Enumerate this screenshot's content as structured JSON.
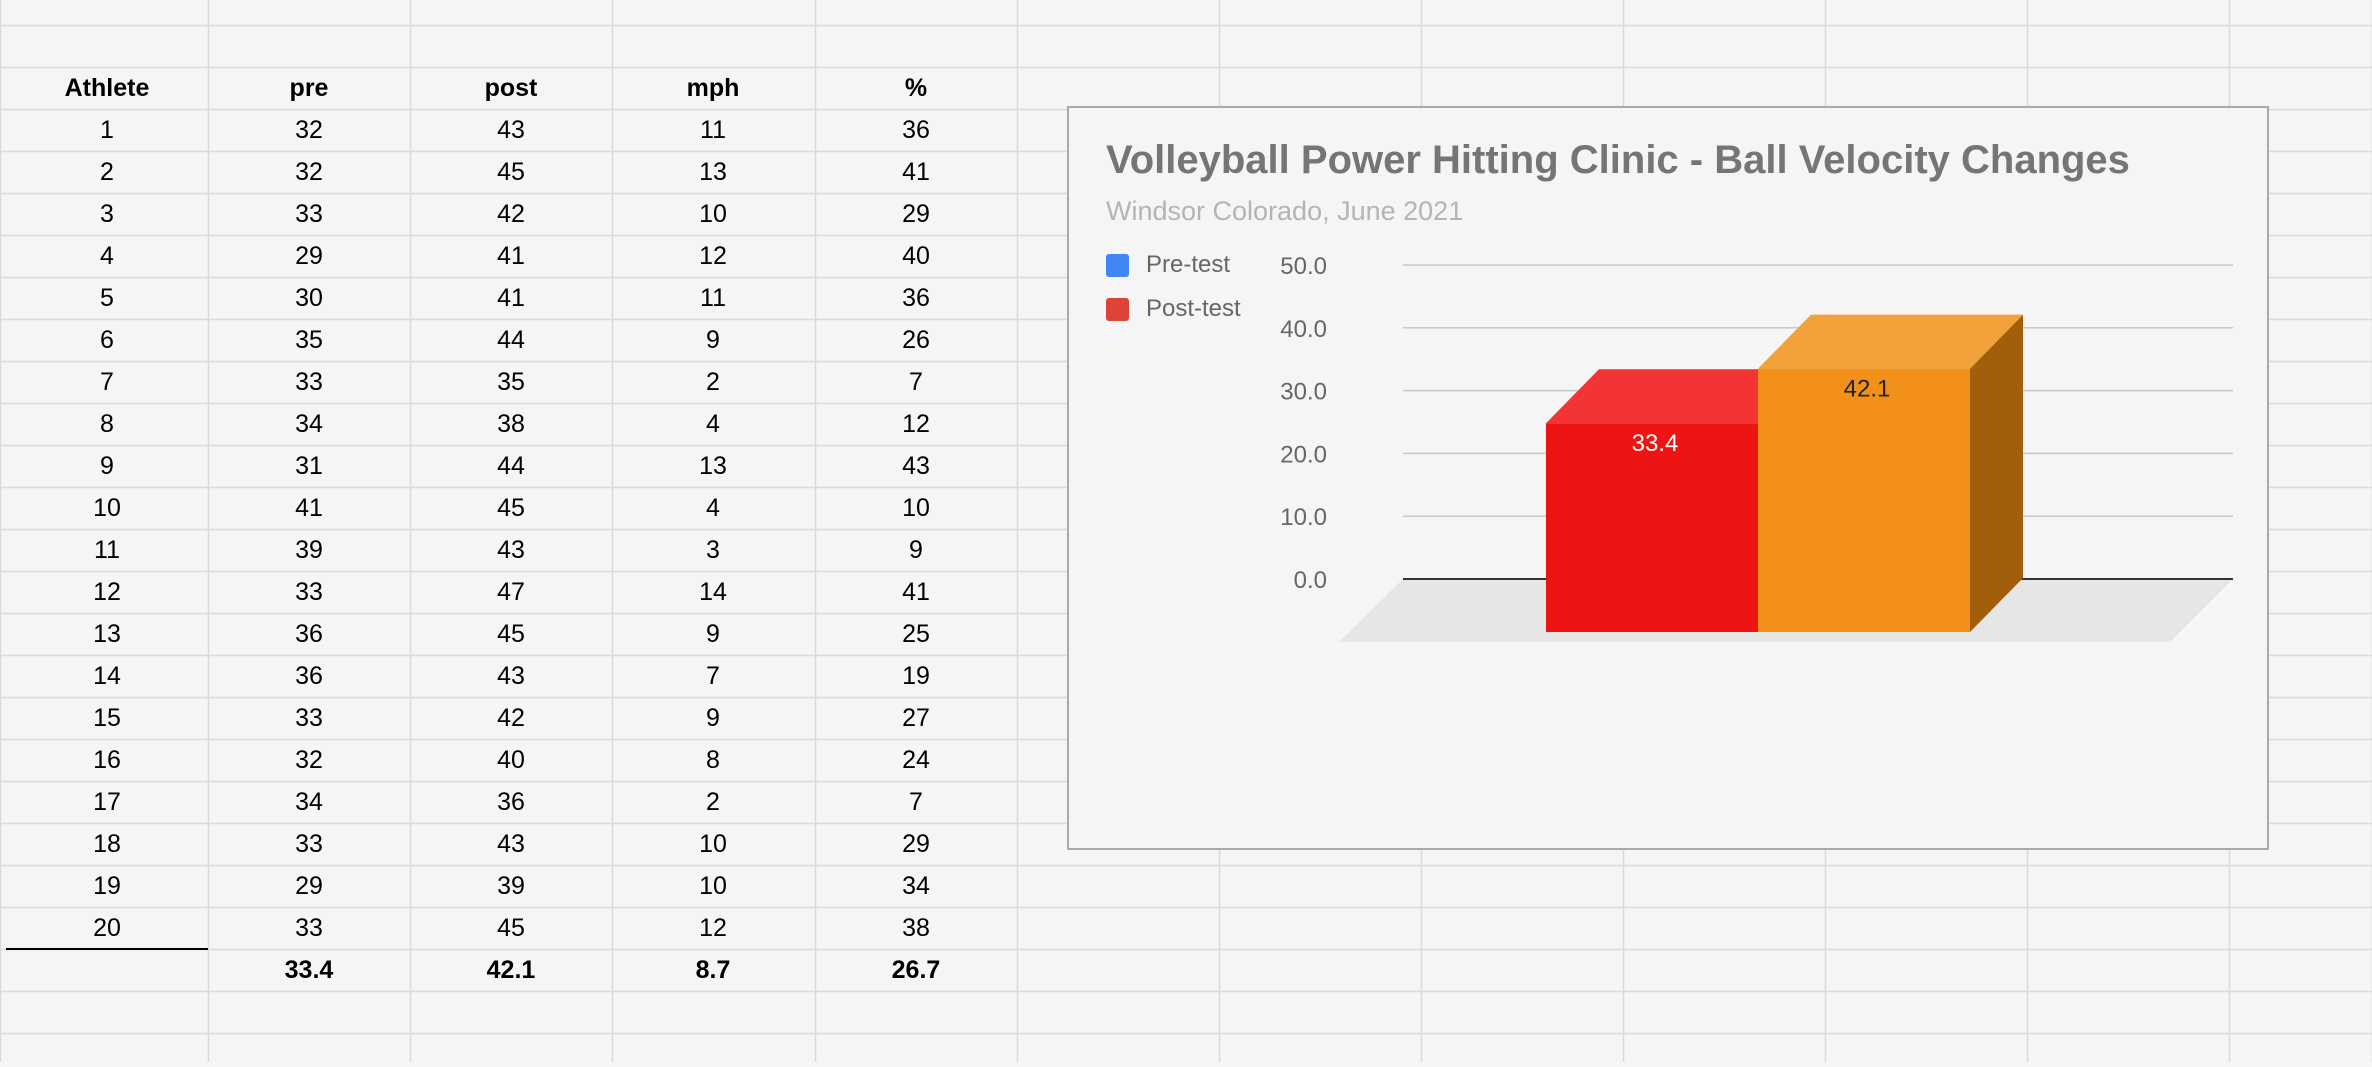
{
  "table": {
    "headers": [
      "Athlete",
      "pre",
      "post",
      "mph",
      "%"
    ],
    "rows": [
      [
        "1",
        "32",
        "43",
        "11",
        "36"
      ],
      [
        "2",
        "32",
        "45",
        "13",
        "41"
      ],
      [
        "3",
        "33",
        "42",
        "10",
        "29"
      ],
      [
        "4",
        "29",
        "41",
        "12",
        "40"
      ],
      [
        "5",
        "30",
        "41",
        "11",
        "36"
      ],
      [
        "6",
        "35",
        "44",
        "9",
        "26"
      ],
      [
        "7",
        "33",
        "35",
        "2",
        "7"
      ],
      [
        "8",
        "34",
        "38",
        "4",
        "12"
      ],
      [
        "9",
        "31",
        "44",
        "13",
        "43"
      ],
      [
        "10",
        "41",
        "45",
        "4",
        "10"
      ],
      [
        "11",
        "39",
        "43",
        "3",
        "9"
      ],
      [
        "12",
        "33",
        "47",
        "14",
        "41"
      ],
      [
        "13",
        "36",
        "45",
        "9",
        "25"
      ],
      [
        "14",
        "36",
        "43",
        "7",
        "19"
      ],
      [
        "15",
        "33",
        "42",
        "9",
        "27"
      ],
      [
        "16",
        "32",
        "40",
        "8",
        "24"
      ],
      [
        "17",
        "34",
        "36",
        "2",
        "7"
      ],
      [
        "18",
        "33",
        "43",
        "10",
        "29"
      ],
      [
        "19",
        "29",
        "39",
        "10",
        "34"
      ],
      [
        "20",
        "33",
        "45",
        "12",
        "38"
      ]
    ],
    "totals": [
      "",
      "33.4",
      "42.1",
      "8.7",
      "26.7"
    ]
  },
  "chart": {
    "title": "Volleyball Power Hitting Clinic - Ball Velocity Changes",
    "subtitle": "Windsor Colorado, June 2021",
    "legend": [
      {
        "label": "Pre-test",
        "color": "#4285f4"
      },
      {
        "label": "Post-test",
        "color": "#db4437"
      }
    ]
  },
  "chart_data": {
    "type": "bar",
    "style": "3d",
    "categories": [
      "Pre-test",
      "Post-test"
    ],
    "values": [
      33.4,
      42.1
    ],
    "bar_colors": [
      "#ef1414",
      "#f29019"
    ],
    "data_labels": [
      "33.4",
      "42.1"
    ],
    "title": "Volleyball Power Hitting Clinic - Ball Velocity Changes",
    "subtitle": "Windsor Colorado, June 2021",
    "ylim": [
      0,
      50
    ],
    "yticks": [
      "0.0",
      "10.0",
      "20.0",
      "30.0",
      "40.0",
      "50.0"
    ],
    "grid": true,
    "legend_position": "left"
  }
}
